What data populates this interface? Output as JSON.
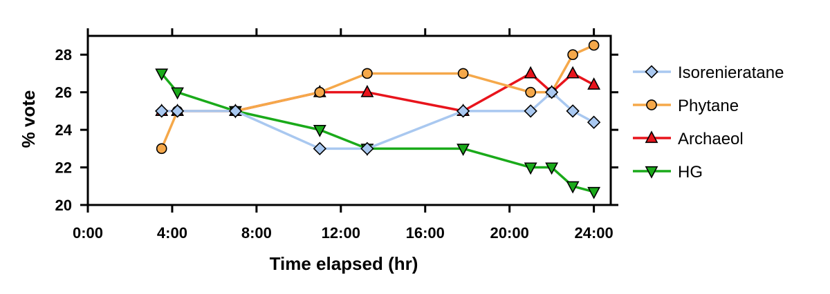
{
  "chart_data": {
    "type": "line",
    "title": "",
    "xlabel": "Time elapsed (hr)",
    "ylabel": "% vote",
    "xlim": [
      0,
      24.8
    ],
    "ylim": [
      20,
      29
    ],
    "x_ticks": [
      0,
      4,
      8,
      12,
      16,
      20,
      24
    ],
    "x_tick_labels": [
      "0:00",
      "4:00",
      "8:00",
      "12:00",
      "16:00",
      "20:00",
      "24:00"
    ],
    "y_ticks": [
      20,
      22,
      24,
      26,
      28
    ],
    "y_tick_labels": [
      "20",
      "22",
      "24",
      "26",
      "28"
    ],
    "grid": false,
    "legend_position": "right",
    "series": [
      {
        "name": "Isorenieratane",
        "color": "#a9c8f0",
        "marker": "diamond",
        "x": [
          3.5,
          4.25,
          7,
          11,
          13.25,
          17.8,
          21,
          22,
          23,
          24
        ],
        "values": [
          25,
          25,
          25,
          23,
          23,
          25,
          25,
          26,
          25,
          24.4
        ]
      },
      {
        "name": "Phytane",
        "color": "#f5a84a",
        "marker": "circle",
        "x": [
          3.5,
          4.25,
          7,
          11,
          13.25,
          17.8,
          21,
          22,
          23,
          24
        ],
        "values": [
          23,
          25,
          25,
          26,
          27,
          27,
          26,
          26,
          28,
          28.5
        ]
      },
      {
        "name": "Archaeol",
        "color": "#e8141c",
        "marker": "triangle-up",
        "x": [
          3.5,
          4.25,
          7,
          11,
          13.25,
          17.8,
          21,
          22,
          23,
          24
        ],
        "values": [
          25,
          25,
          25,
          26,
          26,
          25,
          27,
          26,
          27,
          26.4
        ]
      },
      {
        "name": "HG",
        "color": "#1aaa1a",
        "marker": "triangle-down",
        "x": [
          3.5,
          4.25,
          7,
          11,
          13.25,
          17.8,
          21,
          22,
          23,
          24
        ],
        "values": [
          27,
          26,
          25,
          24,
          23,
          23,
          22,
          22,
          21,
          20.7
        ]
      }
    ]
  }
}
